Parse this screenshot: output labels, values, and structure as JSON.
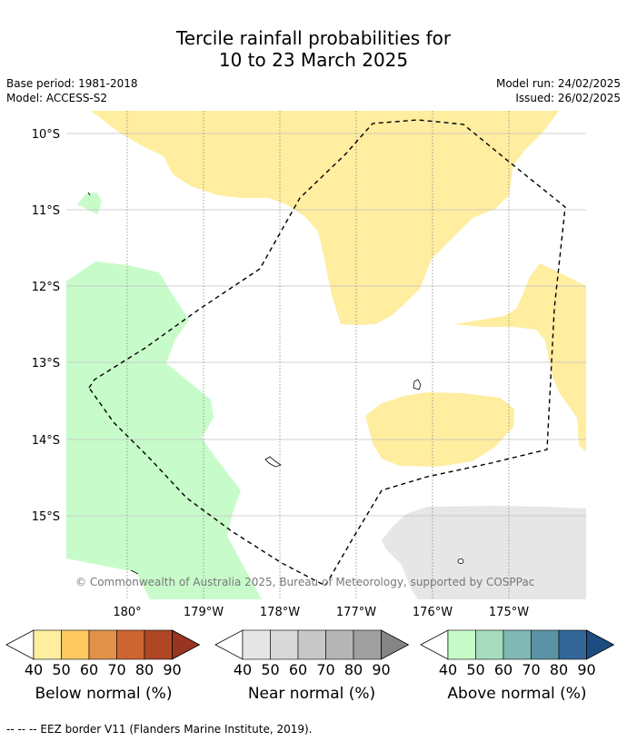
{
  "title_line1": "Tercile rainfall probabilities for",
  "title_line2": "10 to 23 March 2025",
  "base_period": "Base period: 1981-2018",
  "model": "Model: ACCESS-S2",
  "model_run": "Model run: 24/02/2025",
  "issued": "Issued: 26/02/2025",
  "copyright": "© Commonwealth of Australia 2025, Bureau of Meteorology, supported by COSPPac",
  "lat_labels": [
    "10°S",
    "11°S",
    "12°S",
    "13°S",
    "14°S",
    "15°S"
  ],
  "lon_labels": [
    "180°",
    "179°W",
    "178°W",
    "177°W",
    "176°W",
    "175°W"
  ],
  "colorbars": [
    {
      "label": "Below normal (%)",
      "ticks": [
        "40",
        "50",
        "60",
        "70",
        "80",
        "90"
      ],
      "colors": [
        "#ffeda0",
        "#fec960",
        "#e0924a",
        "#cd6530",
        "#ad4724",
        "#993420"
      ]
    },
    {
      "label": "Near normal (%)",
      "ticks": [
        "40",
        "50",
        "60",
        "70",
        "80",
        "90"
      ],
      "colors": [
        "#e6e6e6",
        "#d9d9d9",
        "#c8c8c8",
        "#b5b5b5",
        "#a0a0a0",
        "#858585"
      ]
    },
    {
      "label": "Above normal (%)",
      "ticks": [
        "40",
        "50",
        "60",
        "70",
        "80",
        "90"
      ],
      "colors": [
        "#c7fcca",
        "#a8dcbe",
        "#7fb8b4",
        "#5a94a4",
        "#336699",
        "#1d4c80"
      ]
    }
  ],
  "footnote": "--  --  -- EEZ border V11 (Flanders Marine Institute, 2019).",
  "colors": {
    "below": "#ffeda0",
    "near": "#e6e6e6",
    "above": "#c7fcca"
  }
}
